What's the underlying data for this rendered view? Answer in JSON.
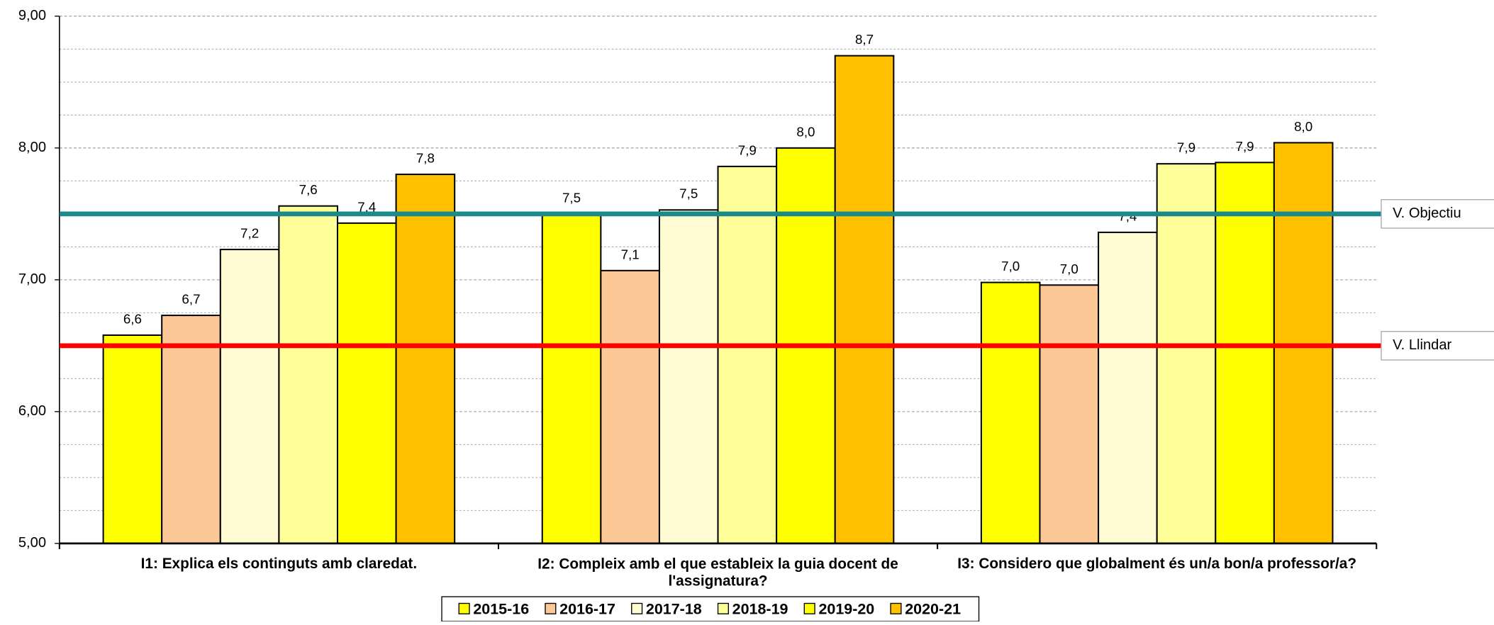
{
  "chart_data": {
    "type": "bar",
    "categories": [
      "I1: Explica els continguts amb claredat.",
      "I2: Compleix amb el que estableix la guia docent de l'assignatura?",
      "I3: Considero que globalment és un/a bon/a professor/a?"
    ],
    "series": [
      {
        "name": "2015-16",
        "color": "#ffff00",
        "values": [
          6.58,
          7.5,
          6.98
        ],
        "value_labels": [
          "6,6",
          "7,5",
          "7,0"
        ]
      },
      {
        "name": "2016-17",
        "color": "#fcc896",
        "values": [
          6.73,
          7.07,
          6.96
        ],
        "value_labels": [
          "6,7",
          "7,1",
          "7,0"
        ]
      },
      {
        "name": "2017-18",
        "color": "#fffbd2",
        "values": [
          7.23,
          7.53,
          7.36
        ],
        "value_labels": [
          "7,2",
          "7,5",
          "7,4"
        ]
      },
      {
        "name": "2018-19",
        "color": "#ffff99",
        "values": [
          7.56,
          7.86,
          7.88
        ],
        "value_labels": [
          "7,6",
          "7,9",
          "7,9"
        ]
      },
      {
        "name": "2019-20",
        "color": "#ffff00",
        "values": [
          7.43,
          8.0,
          7.89
        ],
        "value_labels": [
          "7,4",
          "8,0",
          "7,9"
        ]
      },
      {
        "name": "2020-21",
        "color": "#ffc000",
        "values": [
          7.8,
          8.7,
          8.04
        ],
        "value_labels": [
          "7,8",
          "8,7",
          "8,0"
        ]
      }
    ],
    "ylim": [
      5,
      9
    ],
    "yticks": [
      {
        "value": 5,
        "label": "5,00"
      },
      {
        "value": 6,
        "label": "6,00"
      },
      {
        "value": 7,
        "label": "7,00"
      },
      {
        "value": 8,
        "label": "8,00"
      },
      {
        "value": 9,
        "label": "9,00"
      }
    ],
    "yminor": [
      5.25,
      5.5,
      5.75,
      6.25,
      6.5,
      6.75,
      7.25,
      7.5,
      7.75,
      8.25,
      8.5,
      8.75
    ],
    "grid": true,
    "reference_lines": [
      {
        "name": "V. Objectiu",
        "value": 7.5,
        "color": "#1a8a8a"
      },
      {
        "name": "V. Llindar",
        "value": 6.5,
        "color": "#ff0000"
      }
    ],
    "legend": "bottom"
  }
}
